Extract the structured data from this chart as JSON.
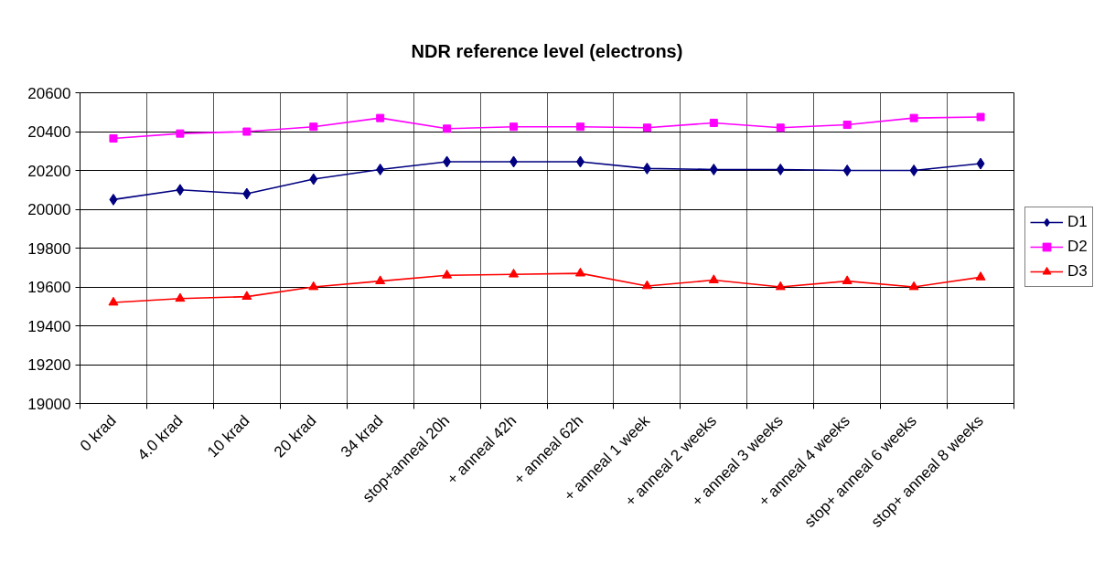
{
  "chart_data": {
    "type": "line",
    "title": "NDR reference level (electrons)",
    "categories": [
      "0 krad",
      "4.0 krad",
      "10 krad",
      "20 krad",
      "34 krad",
      "stop+anneal 20h",
      "+ anneal 42h",
      "+ anneal 62h",
      "+ anneal 1 week",
      "+ anneal 2 weeks",
      "+ anneal 3 weeks",
      "+ anneal 4 weeks",
      "stop+ anneal 6 weeks",
      "stop+ anneal 8 weeks"
    ],
    "series": [
      {
        "name": "D1",
        "color": "#000080",
        "marker": "diamond",
        "values": [
          20050,
          20100,
          20080,
          20155,
          20205,
          20245,
          20245,
          20245,
          20210,
          20205,
          20205,
          20200,
          20200,
          20235
        ]
      },
      {
        "name": "D2",
        "color": "#ff00ff",
        "marker": "square",
        "values": [
          20365,
          20390,
          20400,
          20425,
          20470,
          20415,
          20425,
          20425,
          20420,
          20445,
          20420,
          20435,
          20470,
          20475
        ]
      },
      {
        "name": "D3",
        "color": "#ff0000",
        "marker": "triangle",
        "values": [
          19520,
          19540,
          19550,
          19600,
          19630,
          19660,
          19665,
          19670,
          19605,
          19635,
          19600,
          19630,
          19600,
          19650
        ]
      }
    ],
    "ylim": [
      19000,
      20600
    ],
    "yticks": [
      19000,
      19200,
      19400,
      19600,
      19800,
      20000,
      20200,
      20400,
      20600
    ],
    "grid": true,
    "legend": "right",
    "line_style": "solid"
  }
}
